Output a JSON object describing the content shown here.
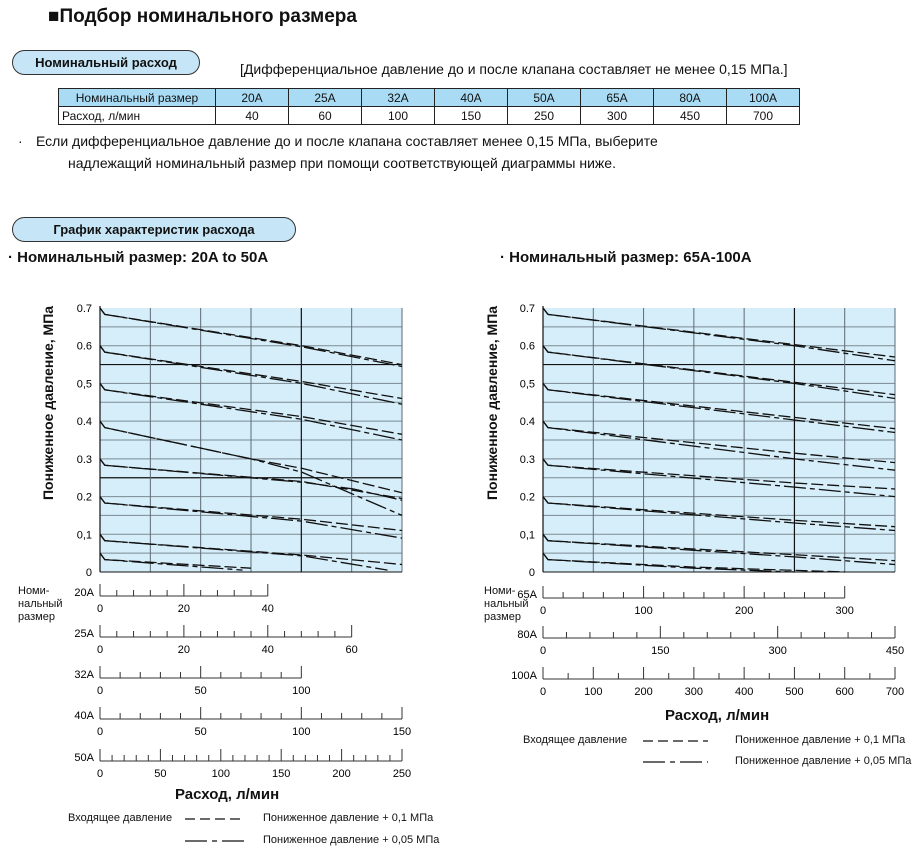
{
  "title": "■Подбор номинального размера",
  "nominal_flow": {
    "pill": "Номинальный расход",
    "note": "[Дифференциальное давление до и после клапана составляет не менее 0,15 МПа.]",
    "header": [
      "Номинальный размер",
      "20A",
      "25A",
      "32A",
      "40A",
      "50A",
      "65A",
      "80A",
      "100A"
    ],
    "row": [
      "Расход, л/мин",
      "40",
      "60",
      "100",
      "150",
      "250",
      "300",
      "450",
      "700"
    ],
    "bullet": "·",
    "remark_line1": "Если дифференциальное давление до и после клапана составляет менее 0,15 МПа, выберите",
    "remark_line2": "надлежащий номинальный размер при помощи соответствующей диаграммы ниже."
  },
  "flow_section": {
    "pill": "График характеристик расхода",
    "left_subtitle": "· Номинальный размер:  20A to 50A",
    "right_subtitle": "· Номинальный размер: 65A-100A",
    "size_label": "Номи-\nнальный\nразмер",
    "legend_inlet": "Входящее давление",
    "legend_01": "Пониженное давление + 0,1 МПа",
    "legend_005": "Пониженное давление + 0,05 МПа"
  },
  "chart_data": [
    {
      "type": "line",
      "ylabel": "Пониженное давление, МПа",
      "xlabel": "Расход, л/мин",
      "ylim": [
        0,
        0.7
      ],
      "xlim": [
        0,
        250
      ],
      "y_ticks": [
        "0.7",
        "0.6",
        "0,5",
        "0.4",
        "0.3",
        "0.2",
        "0,1",
        "0"
      ],
      "grid": true,
      "background": "#d6eef9",
      "x_scales": [
        {
          "label": "20A",
          "full_range": 72,
          "max": 40,
          "major": 20,
          "minor": 4
        },
        {
          "label": "25A",
          "full_range": 72,
          "max": 60,
          "major": 20,
          "minor": 4
        },
        {
          "label": "32A",
          "full_range": 150,
          "max": 100,
          "major": 50,
          "minor": 10
        },
        {
          "label": "40A",
          "full_range": 150,
          "max": 150,
          "major": 50,
          "minor": 10
        },
        {
          "label": "50A",
          "full_range": 250,
          "max": 250,
          "major": 50,
          "minor": 10
        }
      ],
      "series": [
        {
          "inlet": 0.7,
          "style": "+0.1",
          "points": [
            [
              0,
              0.7
            ],
            [
              4,
              0.683
            ],
            [
              167,
              0.6
            ],
            [
              250,
              0.55
            ]
          ]
        },
        {
          "inlet": 0.7,
          "style": "+0.05",
          "points": [
            [
              0,
              0.7
            ],
            [
              4,
              0.683
            ],
            [
              167,
              0.597
            ],
            [
              250,
              0.545
            ]
          ]
        },
        {
          "inlet": 0.6,
          "style": "+0.1",
          "points": [
            [
              0,
              0.6
            ],
            [
              4,
              0.583
            ],
            [
              167,
              0.505
            ],
            [
              250,
              0.46
            ]
          ]
        },
        {
          "inlet": 0.6,
          "style": "+0.05",
          "points": [
            [
              0,
              0.6
            ],
            [
              4,
              0.583
            ],
            [
              167,
              0.5
            ],
            [
              250,
              0.445
            ]
          ]
        },
        {
          "inlet": 0.5,
          "style": "+0.1",
          "points": [
            [
              0,
              0.5
            ],
            [
              4,
              0.483
            ],
            [
              167,
              0.412
            ],
            [
              250,
              0.365
            ]
          ]
        },
        {
          "inlet": 0.5,
          "style": "+0.05",
          "points": [
            [
              0,
              0.5
            ],
            [
              4,
              0.483
            ],
            [
              167,
              0.405
            ],
            [
              250,
              0.35
            ]
          ]
        },
        {
          "inlet": 0.4,
          "style": "+0.1",
          "points": [
            [
              0,
              0.4
            ],
            [
              4,
              0.383
            ],
            [
              125,
              0.3
            ],
            [
              167,
              0.275
            ],
            [
              250,
              0.21
            ]
          ]
        },
        {
          "inlet": 0.4,
          "style": "+0.05",
          "points": [
            [
              0,
              0.4
            ],
            [
              4,
              0.383
            ],
            [
              125,
              0.3
            ],
            [
              167,
              0.265
            ],
            [
              250,
              0.15
            ]
          ]
        },
        {
          "inlet": 0.3,
          "style": "+0.1",
          "points": [
            [
              0,
              0.3
            ],
            [
              4,
              0.283
            ],
            [
              167,
              0.24
            ],
            [
              250,
              0.195
            ]
          ]
        },
        {
          "inlet": 0.3,
          "style": "+0.05",
          "points": [
            [
              0,
              0.3
            ],
            [
              4,
              0.283
            ],
            [
              167,
              0.238
            ],
            [
              210,
              0.22
            ],
            [
              250,
              0.19
            ]
          ]
        },
        {
          "inlet": 0.2,
          "style": "+0.1",
          "points": [
            [
              0,
              0.2
            ],
            [
              4,
              0.183
            ],
            [
              167,
              0.14
            ],
            [
              250,
              0.11
            ]
          ]
        },
        {
          "inlet": 0.2,
          "style": "+0.05",
          "points": [
            [
              0,
              0.2
            ],
            [
              4,
              0.183
            ],
            [
              167,
              0.135
            ],
            [
              250,
              0.09
            ]
          ]
        },
        {
          "inlet": 0.1,
          "style": "+0.1",
          "points": [
            [
              0,
              0.1
            ],
            [
              4,
              0.083
            ],
            [
              167,
              0.045
            ],
            [
              250,
              0.02
            ]
          ]
        },
        {
          "inlet": 0.1,
          "style": "+0.05",
          "points": [
            [
              0,
              0.1
            ],
            [
              4,
              0.083
            ],
            [
              167,
              0.043
            ],
            [
              238,
              0.005
            ]
          ]
        },
        {
          "inlet": 0.05,
          "style": "+0.1",
          "points": [
            [
              0,
              0.05
            ],
            [
              4,
              0.033
            ],
            [
              125,
              0.01
            ]
          ]
        },
        {
          "inlet": 0.05,
          "style": "+0.05",
          "points": [
            [
              0,
              0.05
            ],
            [
              4,
              0.033
            ],
            [
              118,
              0.005
            ]
          ]
        }
      ]
    },
    {
      "type": "line",
      "ylabel": "Пониженное давление, МПа",
      "xlabel": "Расход, л/мин",
      "ylim": [
        0,
        0.7
      ],
      "xlim": [
        0,
        700
      ],
      "y_ticks": [
        "0.7",
        "0.6",
        "0,5",
        "0.4",
        "0.3",
        "0.2",
        "0,1",
        "0"
      ],
      "grid": true,
      "background": "#d6eef9",
      "x_scales": [
        {
          "label": "65A",
          "full_range": 350,
          "max": 300,
          "major": 100,
          "minor": 20
        },
        {
          "label": "80A",
          "full_range": 450,
          "max": 450,
          "major": 150,
          "minor": 30
        },
        {
          "label": "100A",
          "full_range": 700,
          "max": 700,
          "major": 100,
          "minor": 50
        }
      ],
      "series": [
        {
          "inlet": 0.7,
          "style": "+0.1",
          "points": [
            [
              0,
              0.7
            ],
            [
              10,
              0.683
            ],
            [
              500,
              0.603
            ],
            [
              700,
              0.57
            ]
          ]
        },
        {
          "inlet": 0.7,
          "style": "+0.05",
          "points": [
            [
              0,
              0.7
            ],
            [
              10,
              0.683
            ],
            [
              500,
              0.6
            ],
            [
              700,
              0.56
            ]
          ]
        },
        {
          "inlet": 0.6,
          "style": "+0.1",
          "points": [
            [
              0,
              0.6
            ],
            [
              10,
              0.583
            ],
            [
              500,
              0.503
            ],
            [
              700,
              0.47
            ]
          ]
        },
        {
          "inlet": 0.6,
          "style": "+0.05",
          "points": [
            [
              0,
              0.6
            ],
            [
              10,
              0.583
            ],
            [
              500,
              0.5
            ],
            [
              700,
              0.46
            ]
          ]
        },
        {
          "inlet": 0.5,
          "style": "+0.1",
          "points": [
            [
              0,
              0.5
            ],
            [
              10,
              0.483
            ],
            [
              500,
              0.41
            ],
            [
              700,
              0.38
            ]
          ]
        },
        {
          "inlet": 0.5,
          "style": "+0.05",
          "points": [
            [
              0,
              0.5
            ],
            [
              10,
              0.483
            ],
            [
              500,
              0.403
            ],
            [
              700,
              0.37
            ]
          ]
        },
        {
          "inlet": 0.4,
          "style": "+0.1",
          "points": [
            [
              0,
              0.4
            ],
            [
              10,
              0.383
            ],
            [
              500,
              0.315
            ],
            [
              700,
              0.29
            ]
          ]
        },
        {
          "inlet": 0.4,
          "style": "+0.05",
          "points": [
            [
              0,
              0.4
            ],
            [
              10,
              0.383
            ],
            [
              500,
              0.3
            ],
            [
              700,
              0.27
            ]
          ]
        },
        {
          "inlet": 0.3,
          "style": "+0.1",
          "points": [
            [
              0,
              0.3
            ],
            [
              10,
              0.283
            ],
            [
              500,
              0.236
            ],
            [
              700,
              0.22
            ]
          ]
        },
        {
          "inlet": 0.3,
          "style": "+0.05",
          "points": [
            [
              0,
              0.3
            ],
            [
              10,
              0.283
            ],
            [
              500,
              0.225
            ],
            [
              700,
              0.2
            ]
          ]
        },
        {
          "inlet": 0.2,
          "style": "+0.1",
          "points": [
            [
              0,
              0.2
            ],
            [
              10,
              0.183
            ],
            [
              500,
              0.137
            ],
            [
              700,
              0.12
            ]
          ]
        },
        {
          "inlet": 0.2,
          "style": "+0.05",
          "points": [
            [
              0,
              0.2
            ],
            [
              10,
              0.183
            ],
            [
              500,
              0.13
            ],
            [
              700,
              0.11
            ]
          ]
        },
        {
          "inlet": 0.1,
          "style": "+0.1",
          "points": [
            [
              0,
              0.1
            ],
            [
              10,
              0.083
            ],
            [
              500,
              0.046
            ],
            [
              700,
              0.03
            ]
          ]
        },
        {
          "inlet": 0.1,
          "style": "+0.05",
          "points": [
            [
              0,
              0.1
            ],
            [
              10,
              0.083
            ],
            [
              500,
              0.04
            ],
            [
              700,
              0.02
            ]
          ]
        },
        {
          "inlet": 0.05,
          "style": "+0.1",
          "points": [
            [
              0,
              0.05
            ],
            [
              10,
              0.033
            ],
            [
              300,
              0.013
            ],
            [
              600,
              0.0
            ]
          ]
        },
        {
          "inlet": 0.05,
          "style": "+0.05",
          "points": [
            [
              0,
              0.05
            ],
            [
              10,
              0.033
            ],
            [
              300,
              0.01
            ],
            [
              500,
              0.0
            ]
          ]
        }
      ]
    }
  ]
}
